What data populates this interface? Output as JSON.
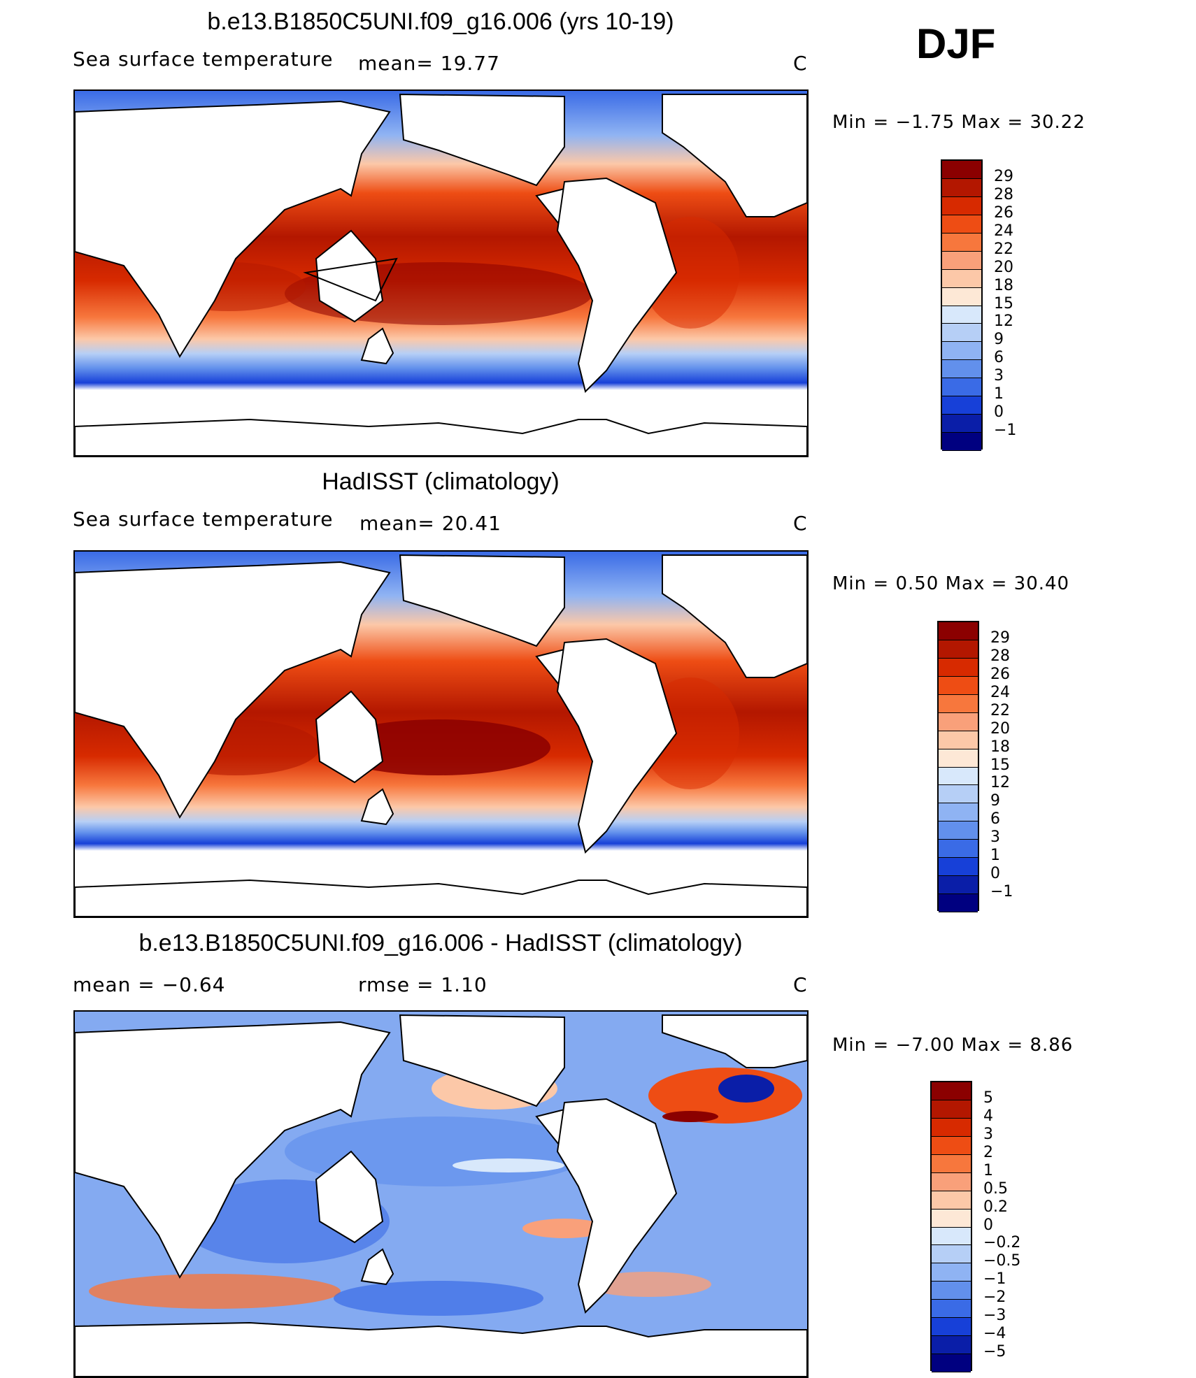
{
  "season": "DJF",
  "panels": [
    {
      "title": "b.e13.B1850C5UNI.f09_g16.006 (yrs 10-19)",
      "left_text": "Sea surface temperature",
      "mid_text": "mean=   19.77",
      "right_text": "C",
      "minmax": "Min  =   −1.75  Max  =   30.22",
      "levels": [
        "29",
        "28",
        "26",
        "24",
        "22",
        "20",
        "18",
        "15",
        "12",
        "9",
        "6",
        "3",
        "1",
        "0",
        "−1"
      ],
      "colors": [
        "#8b0000",
        "#b31700",
        "#d72a00",
        "#ee4d14",
        "#f7773d",
        "#f9a07a",
        "#fcc8a8",
        "#fde8d6",
        "#d8e8fb",
        "#b6cff6",
        "#8fb3f3",
        "#6290ec",
        "#3a6be6",
        "#1740d8",
        "#0a1ea8",
        "#000080"
      ]
    },
    {
      "title": "HadISST (climatology)",
      "left_text": "Sea surface temperature",
      "mid_text": "mean=   20.41",
      "right_text": "C",
      "minmax": "Min  =     0.50  Max  =    30.40",
      "levels": [
        "29",
        "28",
        "26",
        "24",
        "22",
        "20",
        "18",
        "15",
        "12",
        "9",
        "6",
        "3",
        "1",
        "0",
        "−1"
      ],
      "colors": [
        "#8b0000",
        "#b31700",
        "#d72a00",
        "#ee4d14",
        "#f7773d",
        "#f9a07a",
        "#fcc8a8",
        "#fde8d6",
        "#d8e8fb",
        "#b6cff6",
        "#8fb3f3",
        "#6290ec",
        "#3a6be6",
        "#1740d8",
        "#0a1ea8",
        "#000080"
      ]
    },
    {
      "title": "b.e13.B1850C5UNI.f09_g16.006 - HadISST (climatology)",
      "left_text": "mean  =    −0.64",
      "mid_text": "rmse  =     1.10",
      "right_text": "C",
      "minmax": "Min  =   −7.00  Max  =      8.86",
      "levels": [
        "5",
        "4",
        "3",
        "2",
        "1",
        "0.5",
        "0.2",
        "0",
        "−0.2",
        "−0.5",
        "−1",
        "−2",
        "−3",
        "−4",
        "−5"
      ],
      "colors": [
        "#8b0000",
        "#b31700",
        "#d72a00",
        "#ee4d14",
        "#f7773d",
        "#f9a07a",
        "#fcc8a8",
        "#fde8d6",
        "#d8e8fb",
        "#b6cff6",
        "#8fb3f3",
        "#6290ec",
        "#3a6be6",
        "#1740d8",
        "#0a1ea8",
        "#000080"
      ]
    }
  ],
  "chart_data": [
    {
      "type": "heatmap",
      "title": "b.e13.B1850C5UNI.f09_g16.006 (yrs 10-19)",
      "variable": "Sea surface temperature",
      "units": "C",
      "mean": 19.77,
      "min": -1.75,
      "max": 30.22,
      "contour_levels": [
        -1,
        0,
        1,
        3,
        6,
        9,
        12,
        15,
        18,
        20,
        22,
        24,
        26,
        28,
        29
      ]
    },
    {
      "type": "heatmap",
      "title": "HadISST (climatology)",
      "variable": "Sea surface temperature",
      "units": "C",
      "mean": 20.41,
      "min": 0.5,
      "max": 30.4,
      "contour_levels": [
        -1,
        0,
        1,
        3,
        6,
        9,
        12,
        15,
        18,
        20,
        22,
        24,
        26,
        28,
        29
      ]
    },
    {
      "type": "heatmap",
      "title": "b.e13.B1850C5UNI.f09_g16.006 - HadISST (climatology)",
      "units": "C",
      "mean": -0.64,
      "rmse": 1.1,
      "min": -7.0,
      "max": 8.86,
      "contour_levels": [
        -5,
        -4,
        -3,
        -2,
        -1,
        -0.5,
        -0.2,
        0,
        0.2,
        0.5,
        1,
        2,
        3,
        4,
        5
      ]
    }
  ]
}
